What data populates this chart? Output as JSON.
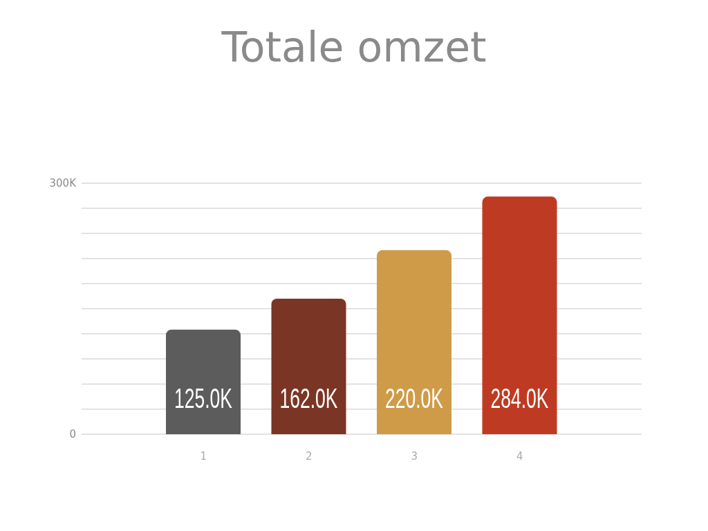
{
  "chart_data": {
    "type": "bar",
    "title": "Totale omzet",
    "categories": [
      "1",
      "2",
      "3",
      "4"
    ],
    "values": [
      125,
      162,
      220,
      284
    ],
    "colors": [
      "#5c5c5c",
      "#7b3524",
      "#cf9b48",
      "#bf3a22"
    ],
    "value_labels": [
      "125.0K",
      "162.0K",
      "220.0K",
      "284.0K"
    ],
    "ylim": [
      0,
      300
    ],
    "yticks": [
      0,
      {
        "value": 30,
        "label": null
      },
      {
        "value": 60,
        "label": null
      },
      {
        "value": 90,
        "label": null
      },
      {
        "value": 120,
        "label": null
      },
      {
        "value": 150,
        "label": null
      },
      {
        "value": 180,
        "label": null
      },
      {
        "value": 210,
        "label": null
      },
      {
        "value": 240,
        "label": null
      },
      {
        "value": 270,
        "label": null
      },
      {
        "value": 300,
        "label": "300K"
      }
    ],
    "grid": "y"
  }
}
